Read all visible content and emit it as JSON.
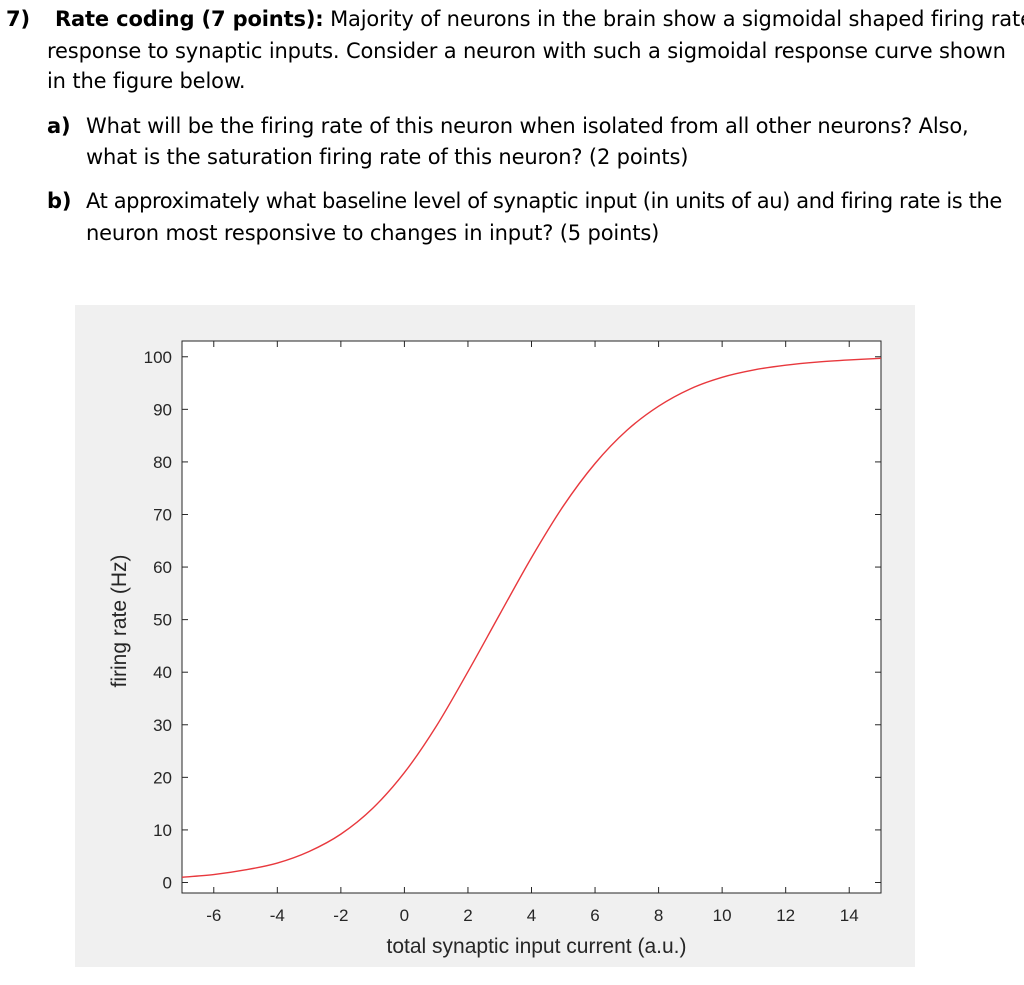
{
  "question": {
    "number": "7)",
    "title": "Rate coding (7 points):",
    "intro_line1": "Majority of neurons in the brain show a sigmoidal shaped firing rate",
    "intro_line2": "response to synaptic inputs. Consider a neuron with such a sigmoidal response curve shown",
    "intro_line3": "in the figure below.",
    "part_a": {
      "label": "a)",
      "line1": "What will be the firing rate of this neuron when isolated from all other neurons? Also,",
      "line2": "what is the saturation firing rate of this neuron? (2 points)"
    },
    "part_b": {
      "label": "b)",
      "line1": "At approximately what baseline level of synaptic input (in units of au) and firing rate is the",
      "line2": "neuron most responsive to changes in input? (5 points)"
    }
  },
  "chart_data": {
    "type": "line",
    "xlabel": "total synaptic input current (a.u.)",
    "ylabel": "firing rate (Hz)",
    "xlim": [
      -7,
      15
    ],
    "ylim": [
      -2,
      103
    ],
    "xticks": [
      -6,
      -4,
      -2,
      0,
      2,
      4,
      6,
      8,
      10,
      12,
      14
    ],
    "yticks": [
      0,
      10,
      20,
      30,
      40,
      50,
      60,
      70,
      80,
      90,
      100
    ],
    "grid": false,
    "series": [
      {
        "color": "#e8383d",
        "x": [
          -7,
          -6,
          -5,
          -4,
          -3,
          -2,
          -1,
          0,
          1,
          2,
          3,
          4,
          5,
          6,
          7,
          8,
          9,
          10,
          11,
          12,
          13,
          14,
          15
        ],
        "y": [
          1.0,
          1.5,
          2.4,
          3.7,
          5.9,
          9.2,
          14.1,
          20.9,
          29.7,
          40.1,
          51.0,
          61.8,
          71.6,
          79.7,
          86.0,
          90.6,
          93.9,
          96.1,
          97.5,
          98.4,
          99.0,
          99.4,
          99.7
        ]
      }
    ]
  }
}
